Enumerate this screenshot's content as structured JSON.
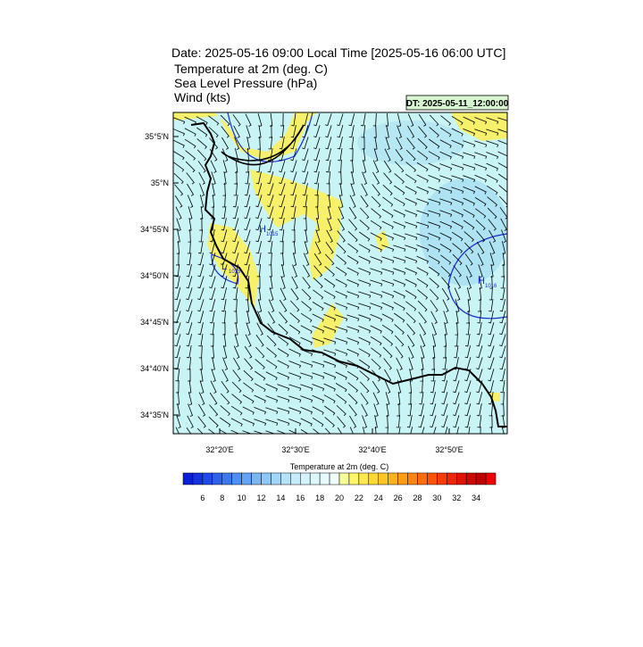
{
  "header": {
    "title": "Date: 2025-05-16  09:00 Local Time [2025-05-16  06:00 UTC]",
    "fields": [
      "Temperature at 2m   (deg. C)",
      "Sea Level Pressure   (hPa)",
      "Wind   (kts)"
    ],
    "dt": "DT: 2025-05-11_12:00:00"
  },
  "map": {
    "lat_labels": [
      "35°5'N",
      "35°N",
      "34°55'N",
      "34°50'N",
      "34°45'N",
      "34°40'N",
      "34°35'N"
    ],
    "lon_labels": [
      "32°20'E",
      "32°30'E",
      "32°40'E",
      "32°50'E"
    ],
    "pressure_labels": [
      {
        "letter": "H",
        "value": "1015"
      },
      {
        "letter": "L",
        "value": "1015"
      },
      {
        "letter": "H",
        "value": "1016"
      }
    ]
  },
  "colorbar": {
    "title": "Temperature at 2m  (deg. C)",
    "labels": [
      6,
      8,
      10,
      12,
      14,
      16,
      18,
      20,
      22,
      24,
      26,
      28,
      30,
      32,
      34
    ],
    "colors": [
      "#0a1fd8",
      "#1432e0",
      "#1f4ae6",
      "#2f62ea",
      "#3f78ee",
      "#5090f0",
      "#62a4f3",
      "#78b6f5",
      "#8ec8f7",
      "#a2d6f8",
      "#b4e2f9",
      "#c4ecfa",
      "#d2f3fb",
      "#dcf8fb",
      "#e6fcfc",
      "#f0fefe",
      "#f6ff9a",
      "#fff46a",
      "#ffe84a",
      "#ffd835",
      "#ffc628",
      "#ffb21e",
      "#ff9c16",
      "#ff8410",
      "#ff6c0c",
      "#ff5408",
      "#f83c06",
      "#ee2604",
      "#e01403",
      "#d00802",
      "#c00000",
      "#f00000"
    ]
  }
}
